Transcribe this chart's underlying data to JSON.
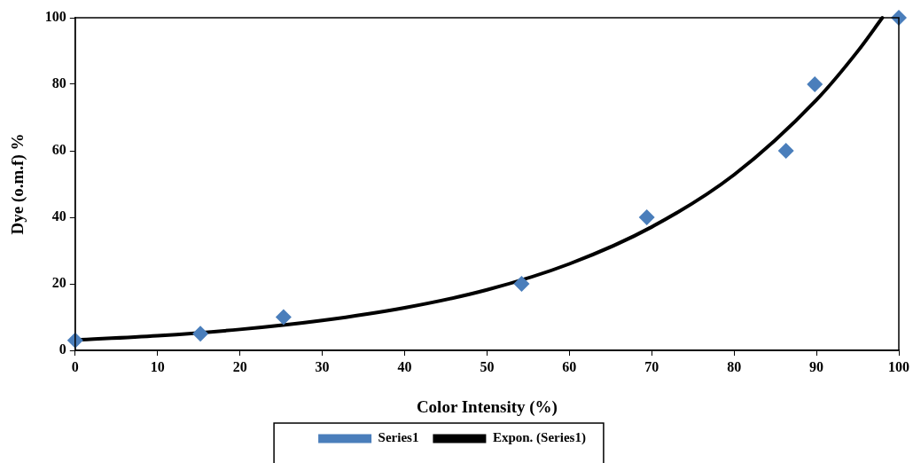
{
  "chart_data": {
    "type": "scatter",
    "xlabel": "Color Intensity (%)",
    "ylabel": "Dye (o.m.f) %",
    "xlim": [
      0,
      100
    ],
    "xticks": [
      0,
      10,
      20,
      30,
      40,
      50,
      60,
      70,
      80,
      90,
      100
    ],
    "ylim": [
      0,
      100
    ],
    "yticks": [
      0,
      20,
      40,
      60,
      80,
      100
    ],
    "grid": false,
    "legend": "bottom",
    "series": [
      {
        "name": "Series1",
        "marker": "diamond",
        "color": "#4a7ebb",
        "x": [
          0,
          15.2,
          25.3,
          54.2,
          69.4,
          86.3,
          89.8,
          100
        ],
        "values": [
          3,
          5,
          10,
          20,
          40,
          60,
          80,
          100
        ]
      },
      {
        "name": "Expon. (Series1)",
        "type": "line",
        "marker": "none",
        "color": "#000000",
        "x": [
          0,
          10,
          20,
          30,
          40,
          50,
          60,
          70,
          80,
          90,
          95,
          98
        ],
        "values": [
          3.1,
          4.4,
          6.3,
          9,
          12.8,
          18.2,
          26,
          37.1,
          52.8,
          75.3,
          89.9,
          100
        ]
      }
    ]
  }
}
